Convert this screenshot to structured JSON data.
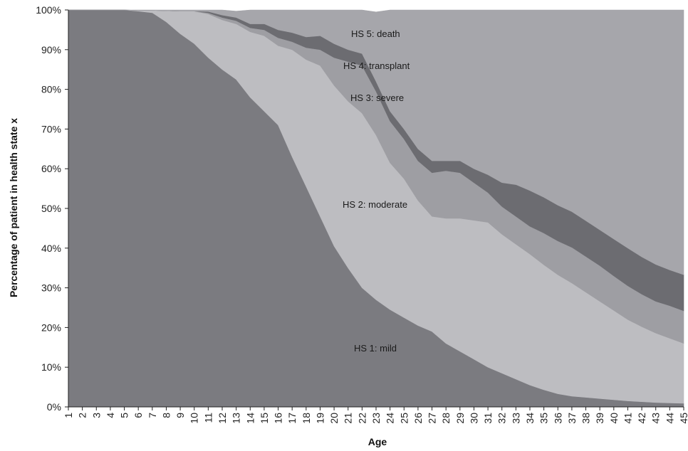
{
  "chart_data": {
    "type": "area",
    "stacked": true,
    "percent": true,
    "xlabel": "Age",
    "ylabel": "Percentage of patient in health state x",
    "x": [
      1,
      2,
      3,
      4,
      5,
      6,
      7,
      8,
      9,
      10,
      11,
      12,
      13,
      14,
      15,
      16,
      17,
      18,
      19,
      20,
      21,
      22,
      23,
      24,
      25,
      26,
      27,
      28,
      29,
      30,
      31,
      32,
      33,
      34,
      35,
      36,
      37,
      38,
      39,
      40,
      41,
      42,
      43,
      44,
      45
    ],
    "ylim": [
      0,
      100
    ],
    "yticks": [
      "0%",
      "10%",
      "20%",
      "30%",
      "40%",
      "50%",
      "60%",
      "70%",
      "80%",
      "90%",
      "100%"
    ],
    "grid": false,
    "series": [
      {
        "name": "HS 1: mild",
        "color": "#7b7b80",
        "values": [
          100,
          100,
          100,
          100,
          100,
          99.7,
          99.3,
          97,
          94,
          91.5,
          88,
          85,
          82.5,
          78,
          74.5,
          71,
          63,
          55.5,
          48,
          40.5,
          35,
          30,
          27,
          24.5,
          22.5,
          20.5,
          19,
          16,
          14,
          12,
          10,
          8.5,
          7,
          5.5,
          4.3,
          3.3,
          2.7,
          2.4,
          2.1,
          1.8,
          1.5,
          1.3,
          1.1,
          1,
          0.9
        ]
      },
      {
        "name": "HS 2: moderate",
        "color": "#bdbdc1",
        "values": [
          0,
          0,
          0,
          0,
          0,
          0.2,
          0.6,
          2.8,
          5.7,
          8.2,
          11,
          12.5,
          14,
          16.5,
          19,
          20,
          27,
          32,
          38,
          40.5,
          42,
          44,
          41.5,
          37,
          35,
          31.5,
          29,
          31.5,
          33.5,
          35,
          36.5,
          35,
          34,
          33,
          31.5,
          30,
          28.5,
          26.5,
          24.5,
          22.5,
          20.5,
          18.9,
          17.5,
          16.3,
          15.1
        ]
      },
      {
        "name": "HS 3: severe",
        "color": "#9e9ea3",
        "values": [
          0,
          0,
          0,
          0,
          0,
          0,
          0,
          0,
          0,
          0,
          0.3,
          0.6,
          0.8,
          1,
          1.5,
          2,
          2,
          3,
          4,
          7,
          10,
          12,
          11,
          10.5,
          10,
          10,
          11,
          12,
          11.5,
          9.5,
          7.5,
          7,
          7,
          7,
          8,
          8.5,
          9,
          9,
          9,
          8.7,
          8.5,
          8.2,
          8,
          8.2,
          8.2
        ]
      },
      {
        "name": "HS 4: transplant",
        "color": "#6c6c71",
        "values": [
          0,
          0,
          0,
          0,
          0,
          0,
          0,
          0,
          0,
          0,
          0.3,
          0.6,
          0.8,
          1,
          1.5,
          2,
          2.3,
          2.7,
          3.5,
          3.5,
          3,
          3,
          2.5,
          2.5,
          2.5,
          3,
          3,
          2.5,
          3,
          3.5,
          4.5,
          6,
          8,
          9,
          9,
          9,
          9,
          9,
          9,
          9.3,
          9.5,
          9.4,
          9.3,
          9,
          9.1
        ]
      },
      {
        "name": "HS 5: death",
        "color": "#a6a6ab",
        "values": [
          0,
          0,
          0,
          0,
          0,
          0.1,
          0.1,
          0.2,
          0.3,
          0.3,
          0.4,
          1.3,
          1.6,
          3.5,
          3.5,
          5,
          5.7,
          6.8,
          6.5,
          8.5,
          10,
          11,
          17.5,
          25.5,
          30,
          35,
          38,
          38,
          38,
          40,
          41.5,
          43.5,
          44,
          45.5,
          47.2,
          49.2,
          50.8,
          53.1,
          55.4,
          57.7,
          60,
          62.2,
          64.1,
          65.5,
          66.7
        ]
      }
    ]
  },
  "labels": {
    "hs1": "HS 1: mild",
    "hs2": "HS 2: moderate",
    "hs3": "HS 3: severe",
    "hs4": "HS 4: transplant",
    "hs5": "HS 5: death"
  }
}
